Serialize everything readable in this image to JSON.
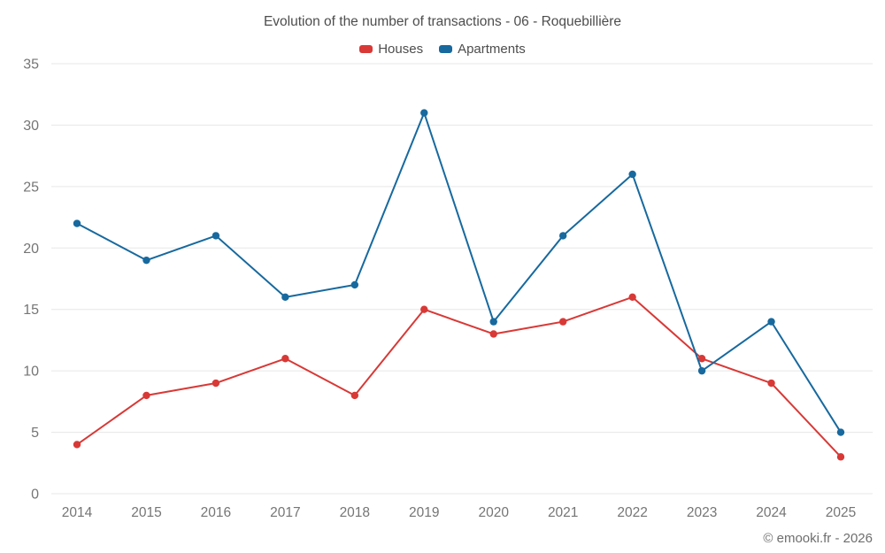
{
  "title": "Evolution of the number of transactions - 06 - Roquebillière",
  "footer": "© emooki.fr - 2026",
  "legend": [
    {
      "label": "Houses",
      "color": "#d83936"
    },
    {
      "label": "Apartments",
      "color": "#17699e"
    }
  ],
  "chart_data": {
    "type": "line",
    "title": "Evolution of the number of transactions - 06 - Roquebillière",
    "categories": [
      "2014",
      "2015",
      "2016",
      "2017",
      "2018",
      "2019",
      "2020",
      "2021",
      "2022",
      "2023",
      "2024",
      "2025"
    ],
    "series": [
      {
        "name": "Houses",
        "color": "#d83936",
        "values": [
          4,
          8,
          9,
          11,
          8,
          15,
          13,
          14,
          16,
          11,
          9,
          3
        ]
      },
      {
        "name": "Apartments",
        "color": "#17699e",
        "values": [
          22,
          19,
          21,
          16,
          17,
          31,
          14,
          21,
          26,
          10,
          14,
          5
        ]
      }
    ],
    "xlabel": "",
    "ylabel": "",
    "ylim": [
      0,
      35
    ],
    "yticks": [
      0,
      5,
      10,
      15,
      20,
      25,
      30,
      35
    ],
    "grid": "horizontal",
    "legend_position": "top-center"
  }
}
